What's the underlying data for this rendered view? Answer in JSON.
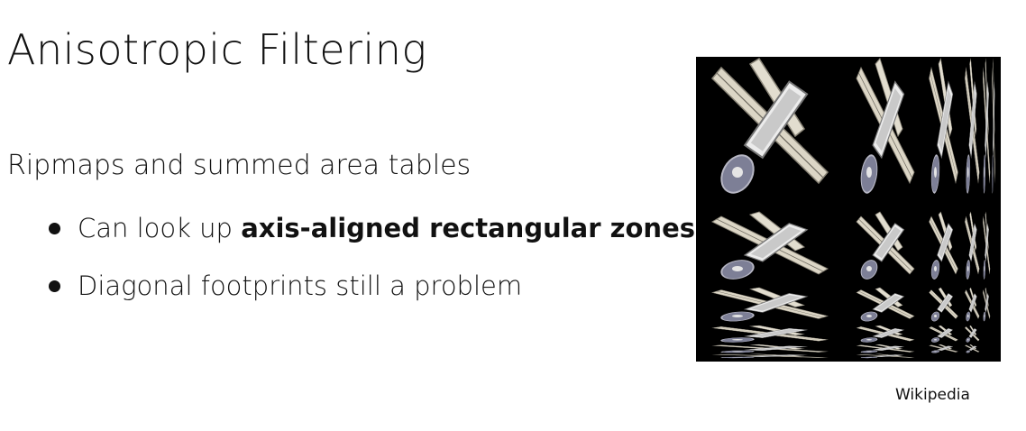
{
  "slide": {
    "title": "Anisotropic Filtering",
    "subtitle": "Ripmaps and summed area tables",
    "bullets": [
      {
        "prefix": "Can look up ",
        "bold": "axis-aligned rectangular zones"
      },
      {
        "text": "Diagonal footprints still a problem"
      }
    ],
    "image_credit": "Wikipedia"
  }
}
